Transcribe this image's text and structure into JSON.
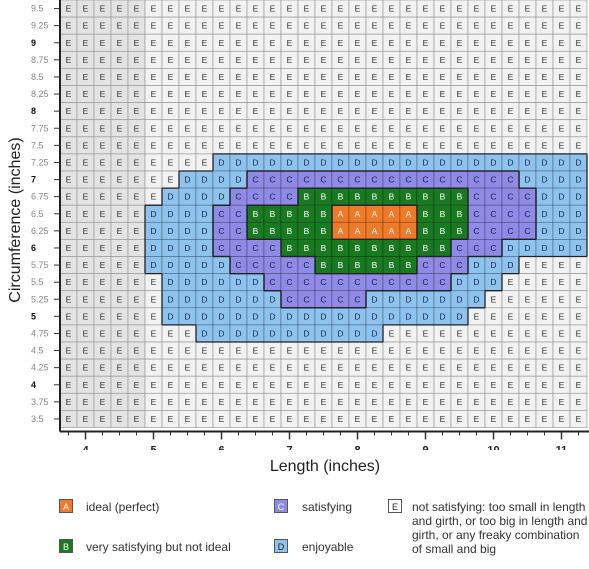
{
  "chart_data": {
    "type": "heatmap",
    "xlabel": "Length (inches)",
    "ylabel": "Circumference (inches)",
    "x_range": [
      3.5,
      11
    ],
    "y_range": [
      3.5,
      9.5
    ],
    "x_step": 0.25,
    "y_step": 0.25,
    "x_ticks": [
      "4",
      "5",
      "6",
      "7",
      "8",
      "9",
      "10",
      "11"
    ],
    "y_ticks": [
      "9.5",
      "9.25",
      "9",
      "8.75",
      "8.5",
      "8.25",
      "8",
      "7.75",
      "7.5",
      "7.25",
      "7",
      "6.75",
      "6.5",
      "6.25",
      "6",
      "5.75",
      "5.5",
      "5.25",
      "5",
      "4.75",
      "4.5",
      "4.25",
      "4",
      "3.75",
      "3.5"
    ],
    "y_ticks_bold": [
      "9",
      "8",
      "7",
      "6",
      "5",
      "4"
    ],
    "rows": [
      {
        "y": "9.5",
        "cells": "EEEEEEEEEEEEEEEEEEEEEEEEEEEEEEE"
      },
      {
        "y": "9.25",
        "cells": "EEEEEEEEEEEEEEEEEEEEEEEEEEEEEEE"
      },
      {
        "y": "9",
        "cells": "EEEEEEEEEEEEEEEEEEEEEEEEEEEEEEE"
      },
      {
        "y": "8.75",
        "cells": "EEEEEEEEEEEEEEEEEEEEEEEEEEEEEEE"
      },
      {
        "y": "8.5",
        "cells": "EEEEEEEEEEEEEEEEEEEEEEEEEEEEEEE"
      },
      {
        "y": "8.25",
        "cells": "EEEEEEEEEEEEEEEEEEEEEEEEEEEEEEE"
      },
      {
        "y": "8",
        "cells": "EEEEEEEEEEEEEEEEEEEEEEEEEEEEEEE"
      },
      {
        "y": "7.75",
        "cells": "EEEEEEEEEEEEEEEEEEEEEEEEEEEEEEE"
      },
      {
        "y": "7.5",
        "cells": "EEEEEEEEEEEEEEEEEEEEEEEEEEEEEEE"
      },
      {
        "y": "7.25",
        "cells": "EEEEEEEEEDDDDDDDDDDDDDDDDDDDDDD"
      },
      {
        "y": "7",
        "cells": "EEEEEEEDDDDCCCCCCCCCCCCCCCCDDDD"
      },
      {
        "y": "6.75",
        "cells": "EEEEEEDDDDCCCCBBBBBBBBBBCCCCDDD"
      },
      {
        "y": "6.5",
        "cells": "EEEEEDDDDCCBBBBBAAAAABBBCCCCDDD"
      },
      {
        "y": "6.25",
        "cells": "EEEEEDDDDCCBBBBBAAAAABBBCCCCDDD"
      },
      {
        "y": "6",
        "cells": "EEEEEDDDDCCCCBBBBBBBBBBCCCDDDDD"
      },
      {
        "y": "5.75",
        "cells": "EEEEEDDDDDCCCCCBBBBBBCCCDDDEEEE"
      },
      {
        "y": "5.5",
        "cells": "EEEEEEDDDDDDCCCCCCCCCCCDDDEEEEE"
      },
      {
        "y": "5.25",
        "cells": "EEEEEEDDDDDDDCCCCCDDDDDDDEEEEEE"
      },
      {
        "y": "5",
        "cells": "EEEEEEDDDDDDDDDDDDDDDDDDEEEEEEE"
      },
      {
        "y": "4.75",
        "cells": "EEEEEEEEDDDDDDDDDDDEEEEEEEEEEEE"
      },
      {
        "y": "4.5",
        "cells": "EEEEEEEEEEEEEEEEEEEEEEEEEEEEEEE"
      },
      {
        "y": "4.25",
        "cells": "EEEEEEEEEEEEEEEEEEEEEEEEEEEEEEE"
      },
      {
        "y": "4",
        "cells": "EEEEEEEEEEEEEEEEEEEEEEEEEEEEEEE"
      },
      {
        "y": "3.75",
        "cells": "EEEEEEEEEEEEEEEEEEEEEEEEEEEEEEE"
      },
      {
        "y": "3.5",
        "cells": "EEEEEEEEEEEEEEEEEEEEEEEEEEEEEEE"
      }
    ],
    "categories": [
      {
        "code": "A",
        "label": "ideal (perfect)",
        "color": "#f07a2a"
      },
      {
        "code": "B",
        "label": "very satisfying but not ideal",
        "color": "#1a7a22"
      },
      {
        "code": "C",
        "label": "satisfying",
        "color": "#8f8ae6"
      },
      {
        "code": "D",
        "label": "enjoyable",
        "color": "#8ec3f0"
      },
      {
        "code": "E",
        "label": "not satisfying: too small in length and girth, or too big in length and girth, or any freaky combination of small and big",
        "color": "#f2f2f2"
      }
    ]
  }
}
